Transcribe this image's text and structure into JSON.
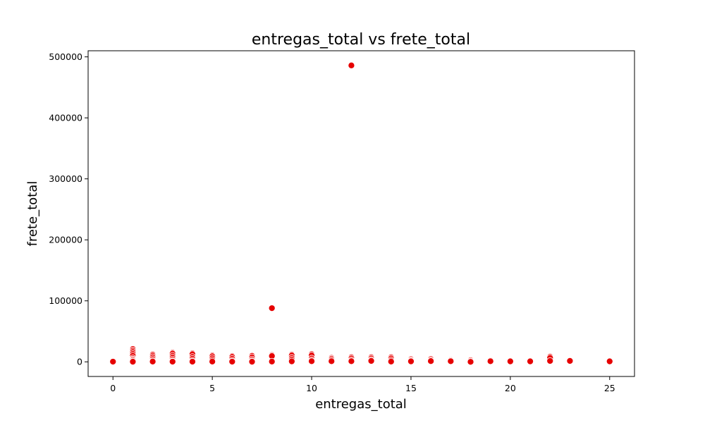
{
  "chart_data": {
    "type": "scatter",
    "title": "entregas_total vs frete_total",
    "xlabel": "entregas_total",
    "ylabel": "frete_total",
    "xlim": [
      -1.25,
      26.25
    ],
    "ylim": [
      -24000,
      510000
    ],
    "xticks": [
      0,
      5,
      10,
      15,
      20,
      25
    ],
    "yticks": [
      0,
      100000,
      200000,
      300000,
      400000,
      500000
    ],
    "grid": false,
    "legend": "none",
    "marker_color": "#e60000",
    "points": [
      [
        0,
        0
      ],
      [
        0,
        300
      ],
      [
        1,
        21000
      ],
      [
        1,
        18500
      ],
      [
        1,
        16000
      ],
      [
        1,
        13000
      ],
      [
        1,
        10000
      ],
      [
        1,
        6000
      ],
      [
        1,
        4000
      ],
      [
        1,
        2500
      ],
      [
        1,
        800
      ],
      [
        1,
        200
      ],
      [
        2,
        12000
      ],
      [
        2,
        10000
      ],
      [
        2,
        7500
      ],
      [
        2,
        4500
      ],
      [
        2,
        2000
      ],
      [
        2,
        500
      ],
      [
        3,
        15000
      ],
      [
        3,
        13500
      ],
      [
        3,
        10000
      ],
      [
        3,
        7000
      ],
      [
        3,
        4000
      ],
      [
        3,
        1500
      ],
      [
        3,
        300
      ],
      [
        4,
        14000
      ],
      [
        4,
        12500
      ],
      [
        4,
        8000
      ],
      [
        4,
        5000
      ],
      [
        4,
        2000
      ],
      [
        4,
        300
      ],
      [
        5,
        10500
      ],
      [
        5,
        9000
      ],
      [
        5,
        6000
      ],
      [
        5,
        3000
      ],
      [
        5,
        500
      ],
      [
        6,
        9500
      ],
      [
        6,
        8000
      ],
      [
        6,
        5000
      ],
      [
        6,
        2000
      ],
      [
        6,
        300
      ],
      [
        7,
        9800
      ],
      [
        7,
        7500
      ],
      [
        7,
        4000
      ],
      [
        7,
        1500
      ],
      [
        7,
        200
      ],
      [
        8,
        88000
      ],
      [
        8,
        11000
      ],
      [
        8,
        9500
      ],
      [
        8,
        500
      ],
      [
        9,
        12000
      ],
      [
        9,
        10500
      ],
      [
        9,
        6500
      ],
      [
        9,
        3500
      ],
      [
        9,
        800
      ],
      [
        10,
        12500
      ],
      [
        10,
        10500
      ],
      [
        10,
        5500
      ],
      [
        10,
        2500
      ],
      [
        10,
        1000
      ],
      [
        11,
        6500
      ],
      [
        11,
        5000
      ],
      [
        11,
        3000
      ],
      [
        11,
        1000
      ],
      [
        12,
        486000
      ],
      [
        12,
        7500
      ],
      [
        12,
        5500
      ],
      [
        12,
        2500
      ],
      [
        12,
        1000
      ],
      [
        13,
        7500
      ],
      [
        13,
        5500
      ],
      [
        13,
        3000
      ],
      [
        13,
        1500
      ],
      [
        14,
        7500
      ],
      [
        14,
        5500
      ],
      [
        14,
        2500
      ],
      [
        14,
        500
      ],
      [
        15,
        4500
      ],
      [
        15,
        3000
      ],
      [
        15,
        1500
      ],
      [
        15,
        800
      ],
      [
        16,
        4500
      ],
      [
        16,
        2500
      ],
      [
        16,
        1200
      ],
      [
        17,
        3000
      ],
      [
        17,
        2000
      ],
      [
        17,
        1000
      ],
      [
        18,
        2500
      ],
      [
        18,
        1000
      ],
      [
        18,
        0
      ],
      [
        19,
        2000
      ],
      [
        19,
        1000
      ],
      [
        20,
        1500
      ],
      [
        20,
        800
      ],
      [
        21,
        1500
      ],
      [
        21,
        800
      ],
      [
        22,
        8500
      ],
      [
        22,
        6500
      ],
      [
        22,
        1500
      ],
      [
        23,
        1500
      ],
      [
        25,
        1500
      ],
      [
        25,
        800
      ]
    ]
  }
}
